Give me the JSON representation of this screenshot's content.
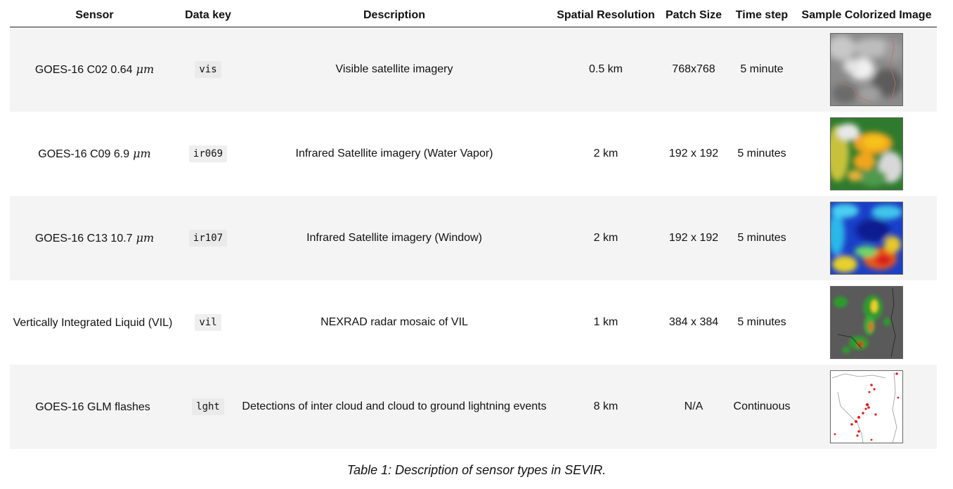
{
  "table": {
    "headers": [
      "Sensor",
      "Data key",
      "Description",
      "Spatial Resolution",
      "Patch Size",
      "Time step",
      "Sample Colorized Image"
    ],
    "rows": [
      {
        "sensor": "GOES-16 C02 0.64",
        "unit": "μm",
        "key": "vis",
        "description": "Visible satellite imagery",
        "resolution": "0.5 km",
        "patch": "768x768",
        "timestep": "5 minute",
        "image": "grayscale-visible-satellite-thumbnail"
      },
      {
        "sensor": "GOES-16 C09 6.9",
        "unit": "μm",
        "key": "ir069",
        "description": "Infrared Satellite imagery (Water Vapor)",
        "resolution": "2 km",
        "patch": "192 x 192",
        "timestep": "5 minutes",
        "image": "water-vapor-colorized-thumbnail"
      },
      {
        "sensor": "GOES-16 C13 10.7",
        "unit": "μm",
        "key": "ir107",
        "description": "Infrared Satellite imagery (Window)",
        "resolution": "2 km",
        "patch": "192 x 192",
        "timestep": "5 minutes",
        "image": "infrared-window-colorized-thumbnail"
      },
      {
        "sensor": "Vertically Integrated Liquid (VIL)",
        "unit": "",
        "key": "vil",
        "description": "NEXRAD radar mosaic of VIL",
        "resolution": "1 km",
        "patch": "384 x 384",
        "timestep": "5 minutes",
        "image": "vil-radar-colorized-thumbnail"
      },
      {
        "sensor": "GOES-16 GLM flashes",
        "unit": "",
        "key": "lght",
        "description": "Detections of inter cloud and cloud to ground lightning events",
        "resolution": "8 km",
        "patch": "N/A",
        "timestep": "Continuous",
        "image": "lightning-flashes-thumbnail"
      }
    ]
  },
  "caption": "Table 1: Description of sensor types in SEVIR."
}
